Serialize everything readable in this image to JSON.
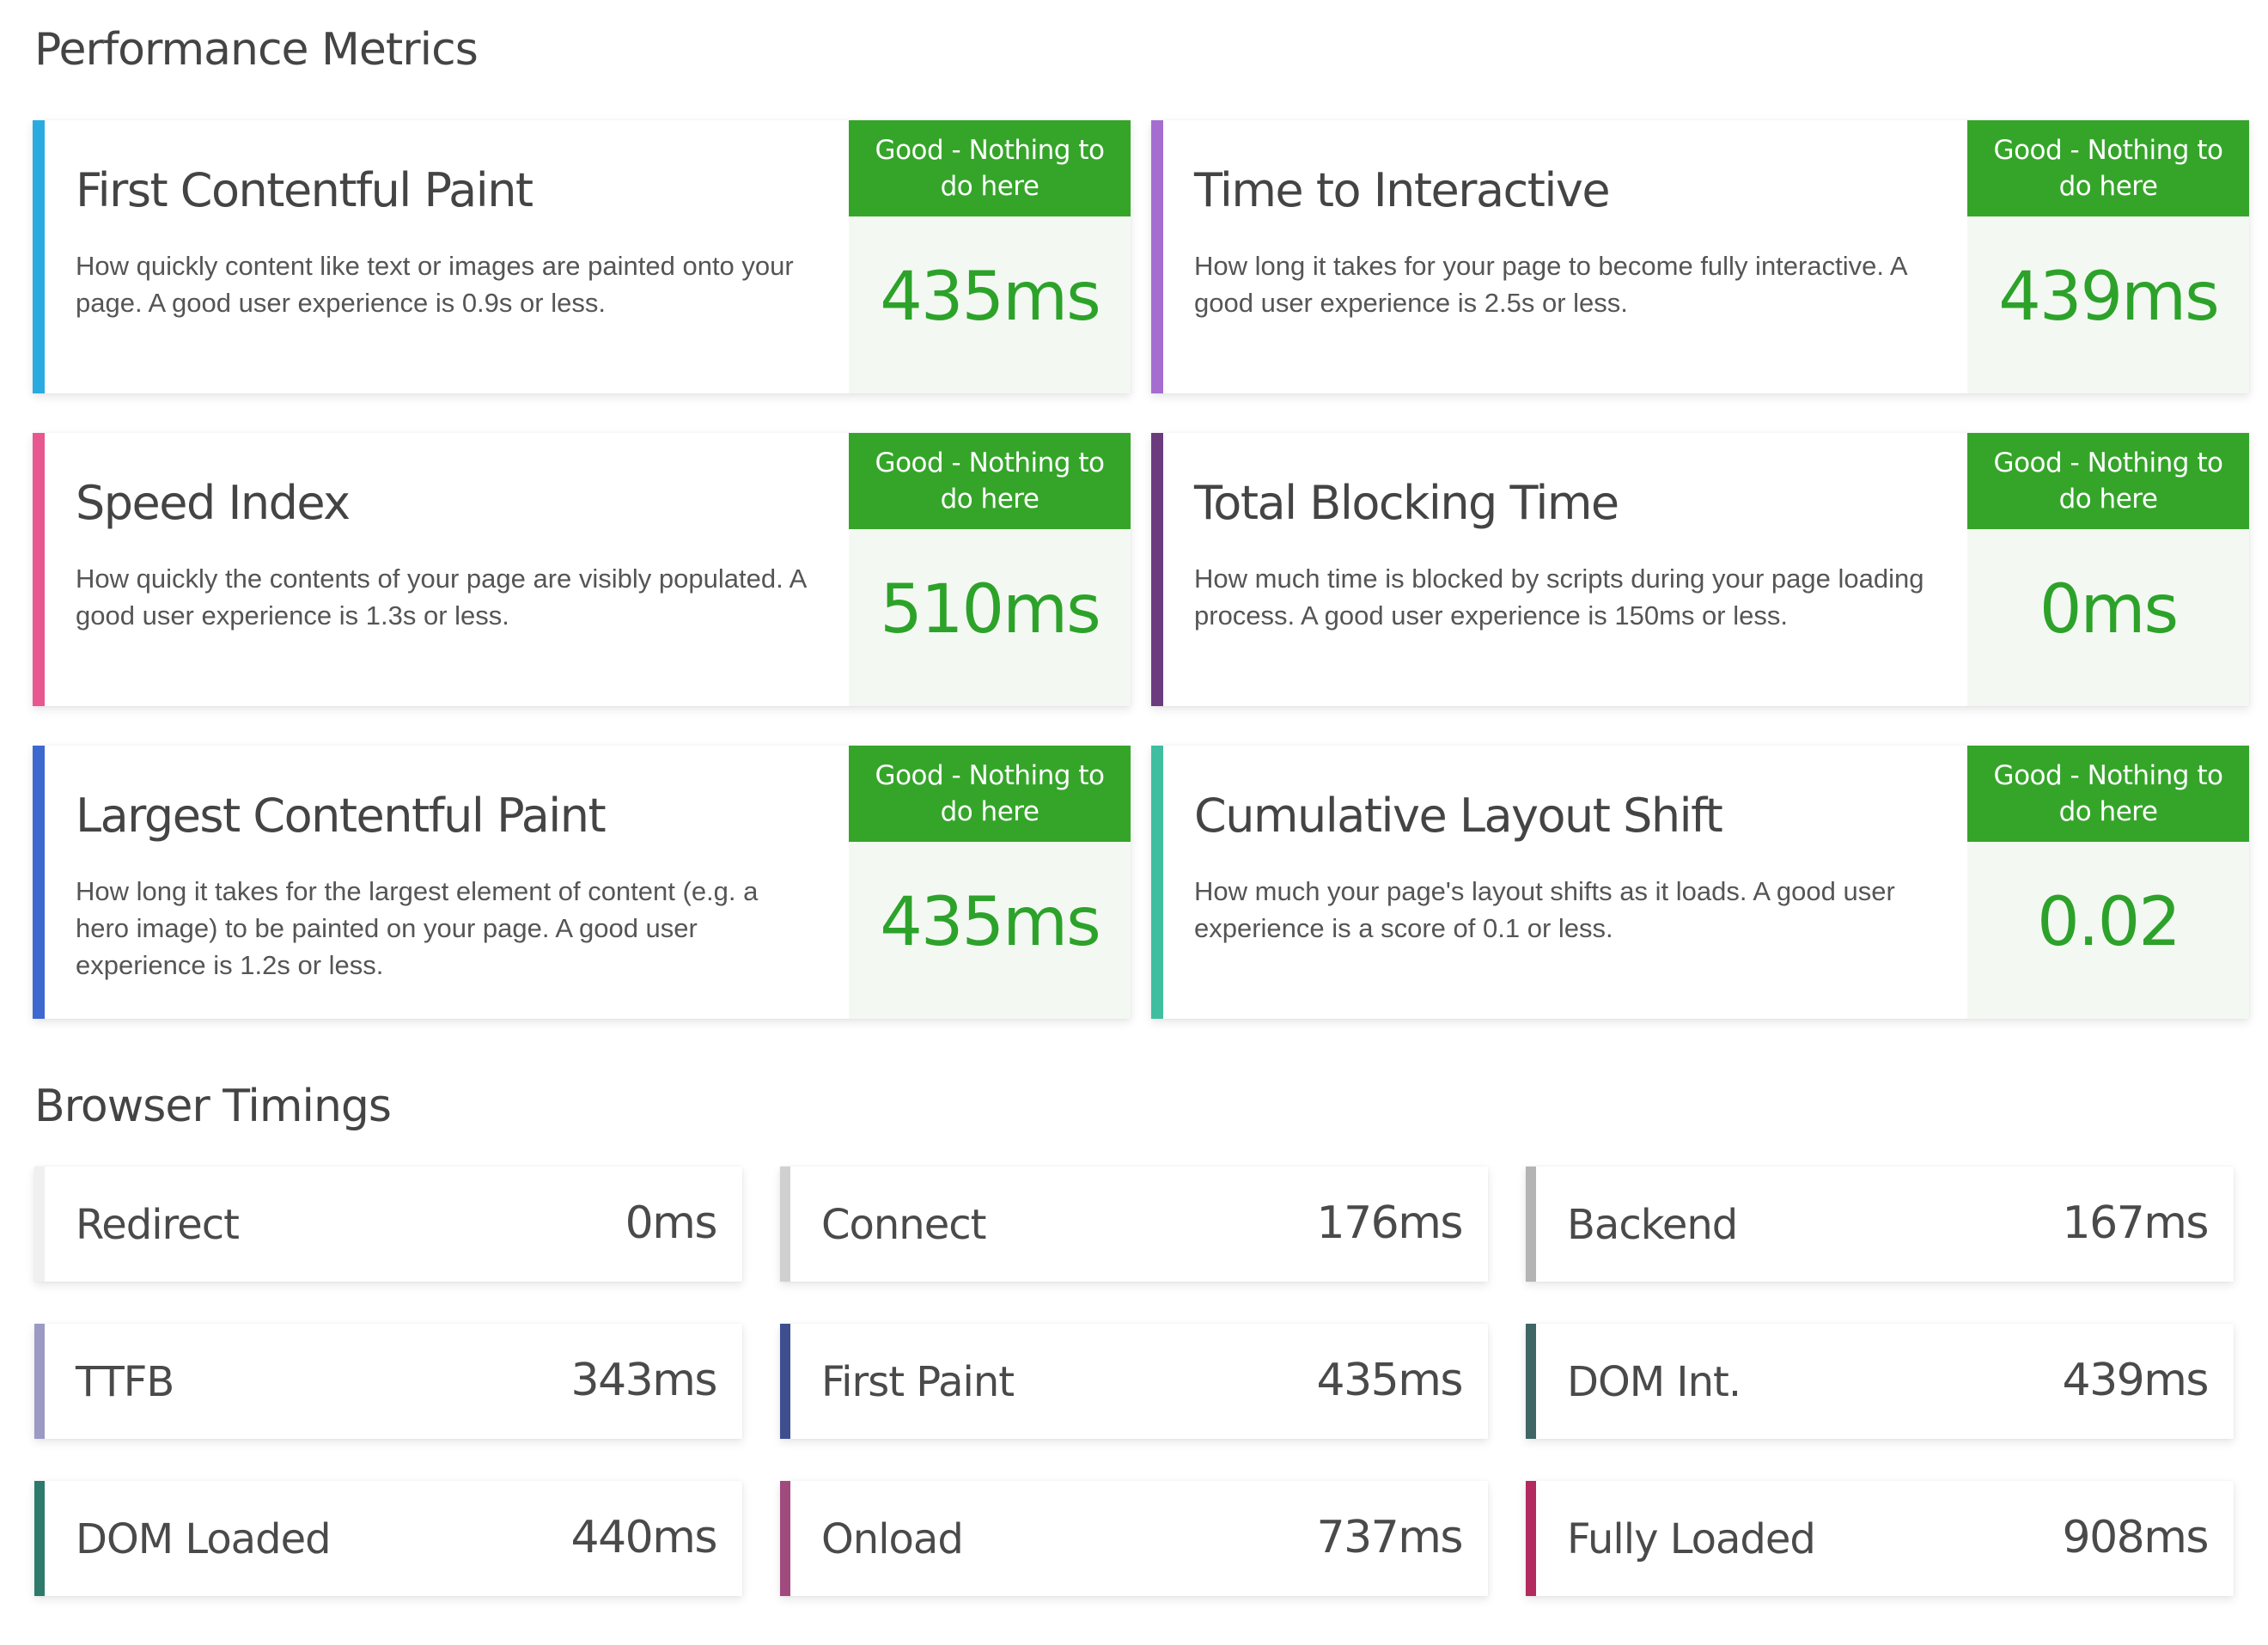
{
  "performance_metrics": {
    "title": "Performance Metrics",
    "cards": [
      {
        "title": "First Contentful Paint",
        "description": "How quickly content like text or images are painted onto your page. A good user experience is 0.9s or less.",
        "badge": "Good - Nothing to do here",
        "value": "435ms",
        "accent_color": "#29abe2"
      },
      {
        "title": "Time to Interactive",
        "description": "How long it takes for your page to become fully interactive. A good user experience is 2.5s or less.",
        "badge": "Good - Nothing to do here",
        "value": "439ms",
        "accent_color": "#a56dd0"
      },
      {
        "title": "Speed Index",
        "description": "How quickly the contents of your page are visibly populated. A good user experience is 1.3s or less.",
        "badge": "Good - Nothing to do here",
        "value": "510ms",
        "accent_color": "#e8578f"
      },
      {
        "title": "Total Blocking Time",
        "description": "How much time is blocked by scripts during your page loading process. A good user experience is 150ms or less.",
        "badge": "Good - Nothing to do here",
        "value": "0ms",
        "accent_color": "#6b3b7e"
      },
      {
        "title": "Largest Contentful Paint",
        "description": "How long it takes for the largest element of content (e.g. a hero image) to be painted on your page. A good user experience is 1.2s or less.",
        "badge": "Good - Nothing to do here",
        "value": "435ms",
        "accent_color": "#3d68cf"
      },
      {
        "title": "Cumulative Layout Shift",
        "description": "How much your page's layout shifts as it loads. A good user experience is a score of 0.1 or less.",
        "badge": "Good - Nothing to do here",
        "value": "0.02",
        "accent_color": "#3fbf9f"
      }
    ]
  },
  "browser_timings": {
    "title": "Browser Timings",
    "items": [
      {
        "label": "Redirect",
        "value": "0ms",
        "accent_color": "#f0f0f0"
      },
      {
        "label": "Connect",
        "value": "176ms",
        "accent_color": "#d0d0d0"
      },
      {
        "label": "Backend",
        "value": "167ms",
        "accent_color": "#b4b4b4"
      },
      {
        "label": "TTFB",
        "value": "343ms",
        "accent_color": "#9a9ac4"
      },
      {
        "label": "First Paint",
        "value": "435ms",
        "accent_color": "#3d4f8f"
      },
      {
        "label": "DOM Int.",
        "value": "439ms",
        "accent_color": "#3f6565"
      },
      {
        "label": "DOM Loaded",
        "value": "440ms",
        "accent_color": "#2e7a6a"
      },
      {
        "label": "Onload",
        "value": "737ms",
        "accent_color": "#a04a7e"
      },
      {
        "label": "Fully Loaded",
        "value": "908ms",
        "accent_color": "#b22a5e"
      }
    ]
  }
}
